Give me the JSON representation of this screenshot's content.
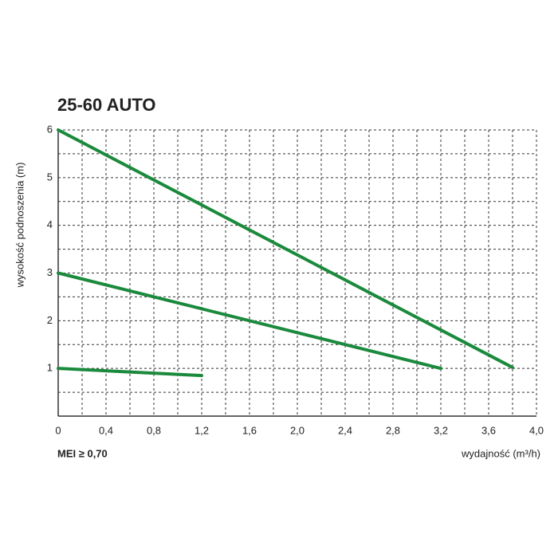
{
  "chart_data": {
    "type": "line",
    "title": "25-60 AUTO",
    "xlabel": "wydajność (m³/h)",
    "ylabel": "wysokość podnoszenia (m)",
    "note": "MEI ≥ 0,70",
    "xlim": [
      0,
      4
    ],
    "ylim": [
      0,
      6
    ],
    "xticks": [
      0,
      {
        "value": 0.4,
        "label": "0,4"
      },
      {
        "value": 0.8,
        "label": "0,8"
      },
      {
        "value": 1.2,
        "label": "1,2"
      },
      {
        "value": 1.6,
        "label": "1,6"
      },
      {
        "value": 2.0,
        "label": "2,0"
      },
      {
        "value": 2.4,
        "label": "2,4"
      },
      {
        "value": 2.8,
        "label": "2,8"
      },
      {
        "value": 3.2,
        "label": "3,2"
      },
      {
        "value": 3.6,
        "label": "3,6"
      },
      {
        "value": 4.0,
        "label": "4,0"
      }
    ],
    "yticks": [
      1,
      2,
      3,
      4,
      5,
      6
    ],
    "xminorticks": [
      0.2,
      0.6,
      1.0,
      1.4,
      1.8,
      2.2,
      2.6,
      3.0,
      3.4,
      3.8
    ],
    "yminorticks": [
      0.5,
      1.5,
      2.5,
      3.5,
      4.5,
      5.5
    ],
    "grid": true,
    "series": [
      {
        "color": "#1b8a3c",
        "x": [
          0,
          3.8
        ],
        "values": [
          6,
          1.02
        ]
      },
      {
        "color": "#1b8a3c",
        "x": [
          0,
          3.2
        ],
        "values": [
          3,
          1
        ]
      },
      {
        "color": "#1b8a3c",
        "x": [
          0,
          1.2
        ],
        "values": [
          1,
          0.85
        ]
      }
    ]
  }
}
